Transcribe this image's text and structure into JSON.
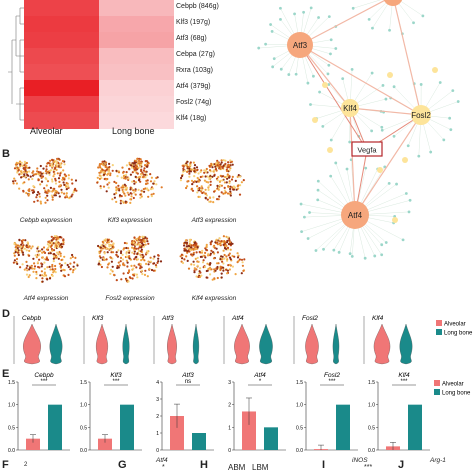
{
  "colors": {
    "alveolar": "#f07676",
    "long_bone": "#1a8a8a",
    "heatmap_high": "#e8141b",
    "heatmap_low": "#fde6e8",
    "network_hub": "#f6a77d",
    "network_mid": "#fde49a",
    "network_leaf": "#9bd6c9",
    "vegfa_box": "#b3262a",
    "edge": "#f2b8a6"
  },
  "heatmap": {
    "genes": [
      "Cebpb (846g)",
      "Klf3 (197g)",
      "Atf3 (68g)",
      "Cebpa (27g)",
      "Rxra (103g)",
      "Atf4 (379g)",
      "Fosl2 (74g)",
      "Klf4 (18g)"
    ],
    "columns": [
      "Alveolar",
      "Long bone"
    ],
    "values": [
      [
        0.78,
        0.22
      ],
      [
        0.82,
        0.3
      ],
      [
        0.8,
        0.32
      ],
      [
        0.75,
        0.2
      ],
      [
        0.72,
        0.18
      ],
      [
        0.95,
        0.1
      ],
      [
        0.78,
        0.08
      ],
      [
        0.74,
        0.06
      ]
    ]
  },
  "network": {
    "hubs": [
      "Atf3",
      "Klf4",
      "Fosl2",
      "Atf4"
    ],
    "target": "Vegfa"
  },
  "panels": {
    "B": "B",
    "D": "D",
    "E": "E",
    "F": "F",
    "G": "G",
    "H": "H",
    "I": "I",
    "J": "J"
  },
  "umap_captions": [
    "Cebpb expression",
    "Klf3 expression",
    "Atf3 expression",
    "Atf4 expression",
    "Fosl2 expression",
    "Klf4 expression"
  ],
  "violin": {
    "genes": [
      "Cebpb",
      "Klf3",
      "Atf3",
      "Atf4",
      "Fosl2",
      "Klf4"
    ],
    "legend": [
      "Alveolar",
      "Long bone"
    ],
    "yticks": [
      "2",
      "1",
      "0"
    ]
  },
  "chart_data": {
    "type": "bar",
    "categories": [
      "Alveolar",
      "Long bone"
    ],
    "series_names_legend": [
      "Alveolar",
      "Long bone"
    ],
    "panels": [
      {
        "gene": "Cebpb",
        "values": [
          0.25,
          1.0
        ],
        "sig": "***",
        "ylim": [
          0,
          1.5
        ],
        "yticks": [
          "1.5",
          "1.0",
          "0.5",
          "0.0"
        ]
      },
      {
        "gene": "Klf3",
        "values": [
          0.25,
          1.0
        ],
        "sig": "***",
        "ylim": [
          0,
          1.5
        ],
        "yticks": [
          "1.5",
          "1.0",
          "0.5",
          "0.0"
        ]
      },
      {
        "gene": "Atf3",
        "values": [
          2.0,
          1.0
        ],
        "sig": "ns",
        "ylim": [
          0,
          4
        ],
        "yticks": [
          "4",
          "3",
          "2",
          "1",
          "0"
        ]
      },
      {
        "gene": "Atf4",
        "values": [
          1.7,
          1.0
        ],
        "sig": "*",
        "ylim": [
          0,
          3
        ],
        "yticks": [
          "3",
          "2",
          "1",
          "0"
        ]
      },
      {
        "gene": "Fosl2",
        "values": [
          0.02,
          1.0
        ],
        "sig": "***",
        "ylim": [
          0,
          1.5
        ],
        "yticks": [
          "1.5",
          "1.0",
          "0.5",
          "0.0"
        ]
      },
      {
        "gene": "Klf4",
        "values": [
          0.08,
          1.0
        ],
        "sig": "***",
        "ylim": [
          0,
          1.5
        ],
        "yticks": [
          "1.5",
          "1.0",
          "0.5",
          "0.0"
        ]
      }
    ]
  },
  "bottom": {
    "g_title": "Atf4",
    "g_sig": "*",
    "h_labels": "ABM   LBM",
    "i_title": "iNOS",
    "i_sig": "***",
    "j_title": "Arg-1",
    "f_tick": "2"
  }
}
